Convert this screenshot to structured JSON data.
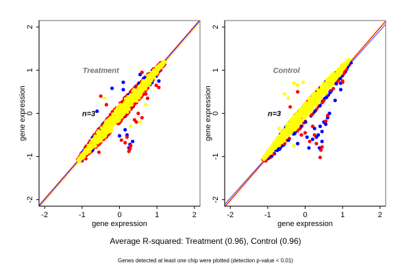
{
  "chart_data": [
    {
      "type": "scatter",
      "title": "Treatment",
      "annotation": "n=3",
      "xlabel": "gene expression",
      "ylabel": "gene expression",
      "xlim": [
        -2.15,
        2.15
      ],
      "ylim": [
        -2.15,
        2.15
      ],
      "xticks": [
        -2,
        -1,
        0,
        1,
        2
      ],
      "yticks": [
        -2,
        -1,
        0,
        1,
        2
      ],
      "grid": false,
      "reference_lines": [
        {
          "color": "#ff0000",
          "slope": 1.0,
          "intercept": 0.02
        },
        {
          "color": "#3333ff",
          "slope": 1.0,
          "intercept": 0.0
        },
        {
          "color": "#ffd700",
          "slope": 1.0,
          "intercept": -0.04
        }
      ],
      "point_cloud": {
        "x_range": [
          -1.1,
          1.2
        ],
        "spread": 0.18,
        "color": "#ffff00"
      },
      "series": [
        {
          "name": "blue",
          "color": "#0000ff",
          "points": [
            [
              -0.2,
              0.58
            ],
            [
              0.1,
              0.72
            ],
            [
              0.1,
              0.55
            ],
            [
              0.55,
              0.9
            ],
            [
              1.05,
              0.75
            ],
            [
              0.35,
              -0.65
            ],
            [
              0.28,
              -0.72
            ],
            [
              0.2,
              -0.5
            ],
            [
              0.0,
              -0.52
            ],
            [
              0.15,
              -0.38
            ],
            [
              0.25,
              -0.8
            ],
            [
              -0.9,
              -0.78
            ],
            [
              -0.95,
              -0.95
            ],
            [
              -0.6,
              0.05
            ]
          ]
        },
        {
          "name": "red",
          "color": "#ff0000",
          "points": [
            [
              1.05,
              0.6
            ],
            [
              0.98,
              0.65
            ],
            [
              0.75,
              0.35
            ],
            [
              0.7,
              0.45
            ],
            [
              0.6,
              0.95
            ],
            [
              0.2,
              -0.55
            ],
            [
              0.25,
              -0.88
            ],
            [
              0.28,
              -0.82
            ],
            [
              0.15,
              -0.68
            ],
            [
              0.3,
              -0.75
            ],
            [
              0.05,
              -0.62
            ],
            [
              0.45,
              -0.2
            ],
            [
              0.5,
              0.0
            ],
            [
              -0.5,
              0.4
            ],
            [
              -0.35,
              0.2
            ],
            [
              -0.55,
              -0.9
            ],
            [
              -0.9,
              -1.05
            ],
            [
              0.6,
              -0.1
            ],
            [
              0.4,
              -0.15
            ],
            [
              -1.0,
              -1.1
            ]
          ]
        },
        {
          "name": "yellow_outliers",
          "color": "#ffff00",
          "points": [
            [
              -0.4,
              0.35
            ],
            [
              0.55,
              -0.2
            ],
            [
              0.7,
              0.2
            ],
            [
              0.3,
              -0.3
            ]
          ]
        }
      ]
    },
    {
      "type": "scatter",
      "title": "Control",
      "annotation": "n=3",
      "xlabel": "gene expression",
      "ylabel": "gene expression",
      "xlim": [
        -2.15,
        2.15
      ],
      "ylim": [
        -2.15,
        2.15
      ],
      "xticks": [
        -2,
        -1,
        0,
        1,
        2
      ],
      "yticks": [
        -2,
        -1,
        0,
        1,
        2
      ],
      "grid": false,
      "reference_lines": [
        {
          "color": "#ffa500",
          "slope": 1.0,
          "intercept": 0.0
        },
        {
          "color": "#3333ff",
          "slope": 0.97,
          "intercept": -0.02
        },
        {
          "color": "#ff0000",
          "slope": 1.0,
          "intercept": -0.02
        }
      ],
      "point_cloud": {
        "x_range": [
          -1.1,
          1.2
        ],
        "spread": 0.18,
        "color": "#ffff00"
      },
      "series": [
        {
          "name": "blue",
          "color": "#0000ff",
          "points": [
            [
              0.5,
              -0.2
            ],
            [
              0.4,
              -0.3
            ],
            [
              0.35,
              -0.5
            ],
            [
              0.45,
              -0.42
            ],
            [
              0.6,
              -0.1
            ],
            [
              0.45,
              -0.65
            ],
            [
              0.38,
              -0.8
            ],
            [
              0.1,
              -0.8
            ],
            [
              0.2,
              -0.6
            ],
            [
              0.3,
              -0.55
            ],
            [
              0.05,
              -0.55
            ],
            [
              -0.2,
              -0.7
            ],
            [
              0.65,
              0.0
            ],
            [
              0.8,
              0.3
            ],
            [
              0.95,
              0.55
            ],
            [
              0.95,
              0.7
            ],
            [
              -0.8,
              -0.85
            ],
            [
              -0.75,
              -0.82
            ],
            [
              0.55,
              -0.25
            ],
            [
              0.25,
              -0.35
            ]
          ]
        },
        {
          "name": "red",
          "color": "#ff0000",
          "points": [
            [
              0.4,
              -1.02
            ],
            [
              0.42,
              -0.85
            ],
            [
              0.45,
              -0.78
            ],
            [
              0.3,
              -0.7
            ],
            [
              0.25,
              -0.5
            ],
            [
              0.0,
              -0.45
            ],
            [
              -0.1,
              -0.5
            ],
            [
              0.55,
              -0.18
            ],
            [
              1.0,
              0.72
            ],
            [
              1.0,
              0.75
            ],
            [
              -0.2,
              0.5
            ],
            [
              -0.4,
              0.15
            ],
            [
              0.2,
              -0.3
            ],
            [
              -0.9,
              -1.0
            ],
            [
              0.6,
              -0.05
            ],
            [
              0.12,
              -0.65
            ]
          ]
        },
        {
          "name": "yellow_outliers",
          "color": "#ffff00",
          "points": [
            [
              -0.05,
              0.72
            ],
            [
              -0.3,
              0.7
            ],
            [
              -0.2,
              0.65
            ],
            [
              -0.55,
              0.45
            ],
            [
              -0.45,
              0.35
            ],
            [
              -0.7,
              -0.35
            ],
            [
              -0.3,
              -0.75
            ]
          ]
        }
      ]
    }
  ],
  "caption": "Average R-squared: Treatment (0.96), Control (0.96)",
  "footnote": "Genes detected at least one chip were plotted (detection p-value < 0.01)"
}
